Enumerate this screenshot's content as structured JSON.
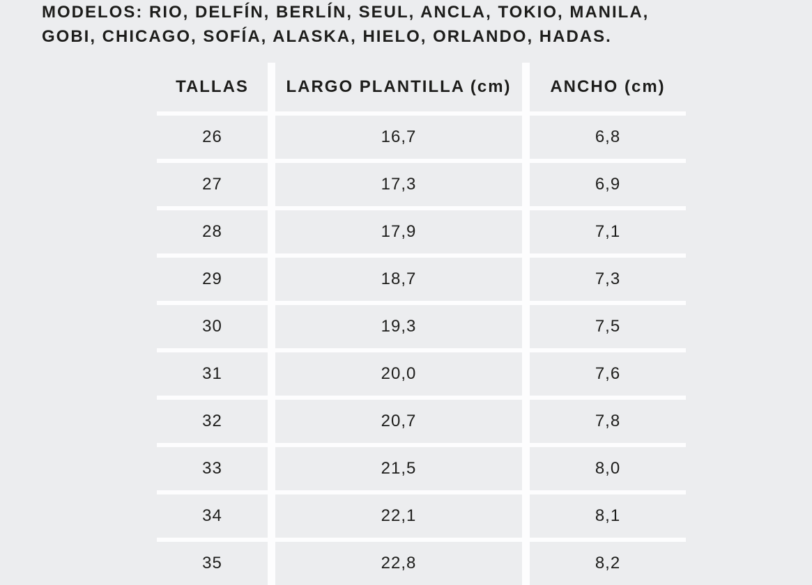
{
  "page": {
    "background_color": "#ECEDEF",
    "gridline_color": "#FDFDFE",
    "text_color": "#1D1D1B"
  },
  "title": {
    "line1": "MODELOS: RIO, DELFÍN, BERLÍN, SEUL, ANCLA, TOKIO, MANILA,",
    "line2": "GOBI, CHICAGO, SOFÍA, ALASKA, HIELO, ORLANDO, HADAS."
  },
  "table": {
    "columns": [
      "TALLAS",
      "LARGO PLANTILLA (cm)",
      "ANCHO (cm)"
    ],
    "fields": [
      "talla",
      "largo_plantilla",
      "ancho"
    ],
    "rows": [
      {
        "talla": "26",
        "largo_plantilla": "16,7",
        "ancho": "6,8"
      },
      {
        "talla": "27",
        "largo_plantilla": "17,3",
        "ancho": "6,9"
      },
      {
        "talla": "28",
        "largo_plantilla": "17,9",
        "ancho": "7,1"
      },
      {
        "talla": "29",
        "largo_plantilla": "18,7",
        "ancho": "7,3"
      },
      {
        "talla": "30",
        "largo_plantilla": "19,3",
        "ancho": "7,5"
      },
      {
        "talla": "31",
        "largo_plantilla": "20,0",
        "ancho": "7,6"
      },
      {
        "talla": "32",
        "largo_plantilla": "20,7",
        "ancho": "7,8"
      },
      {
        "talla": "33",
        "largo_plantilla": "21,5",
        "ancho": "8,0"
      },
      {
        "talla": "34",
        "largo_plantilla": "22,1",
        "ancho": "8,1"
      },
      {
        "talla": "35",
        "largo_plantilla": "22,8",
        "ancho": "8,2"
      }
    ]
  }
}
